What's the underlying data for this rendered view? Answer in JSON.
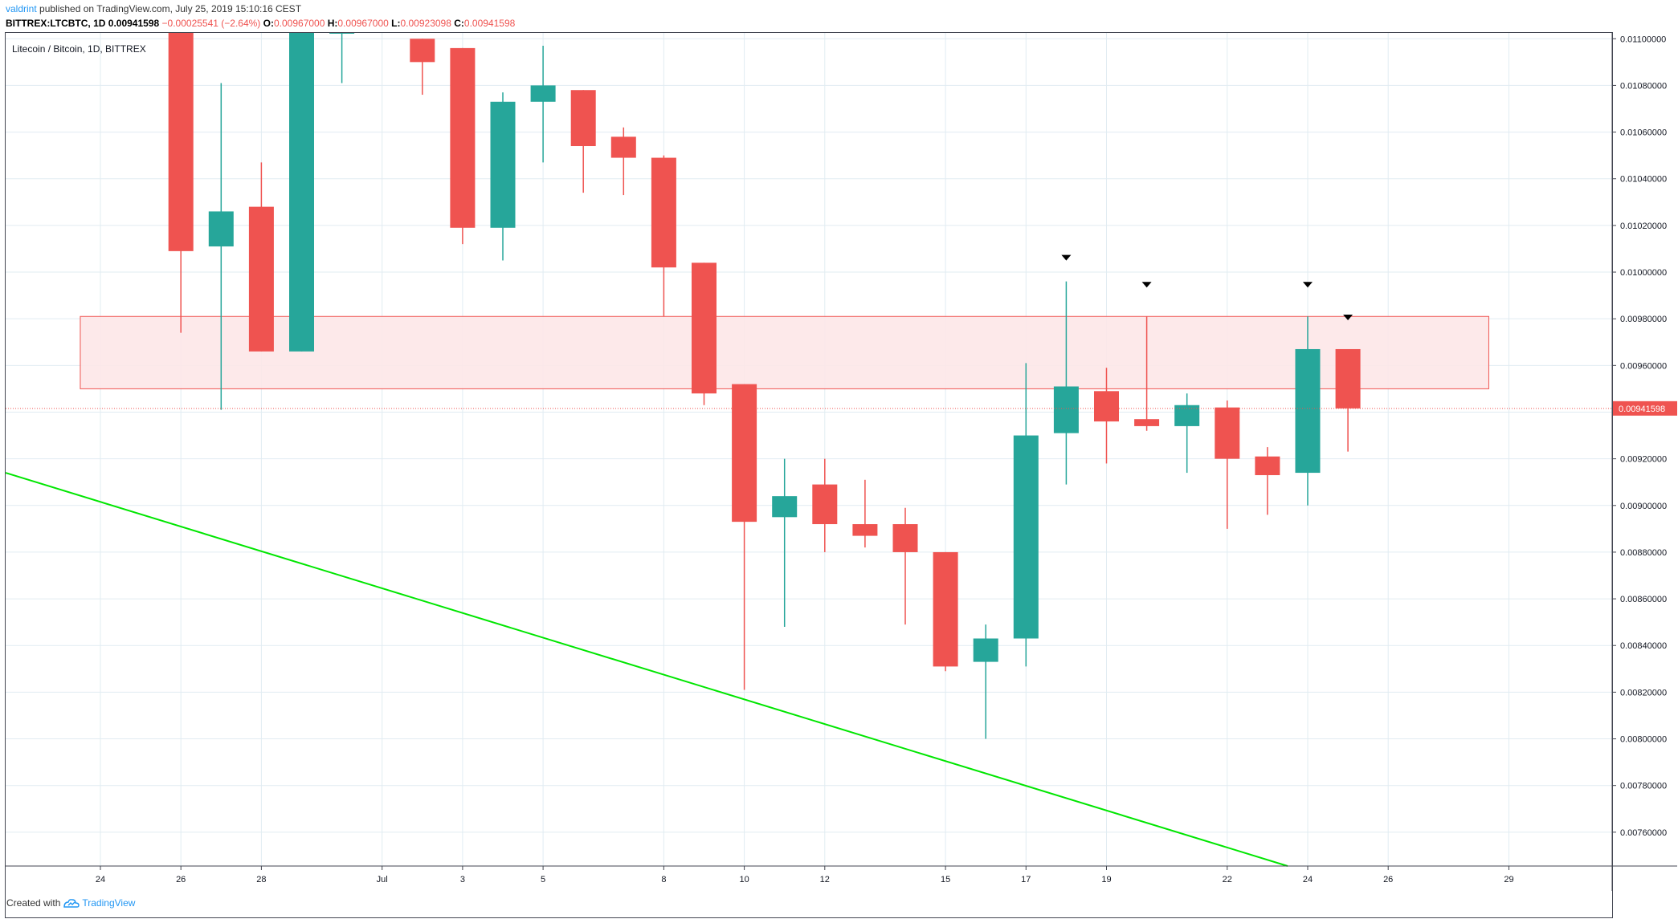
{
  "header": {
    "author": "valdrint",
    "published_text": "published on TradingView.com, July 25, 2019 15:10:16 CEST",
    "symbol_line": "BITTREX:LTCBTC, 1D",
    "last_value": "0.00941598",
    "change": "−0.00025541 (−2.64%)",
    "open_label": "O:",
    "open_value": "0.00967000",
    "high_label": "H:",
    "high_value": "0.00967000",
    "low_label": "L:",
    "low_value": "0.00923098",
    "close_label": "C:",
    "close_value": "0.00941598"
  },
  "chart_data": {
    "type": "candlestick",
    "title": "Litecoin / Bitcoin, 1D, BITTREX",
    "y_ticks": [
      0.0076,
      0.0078,
      0.008,
      0.0082,
      0.0084,
      0.0086,
      0.0088,
      0.009,
      0.0092,
      0.0094,
      0.0096,
      0.0098,
      0.01,
      0.0102,
      0.0104,
      0.0106,
      0.0108,
      0.011
    ],
    "y_tick_labels": [
      "0.00760000",
      "0.00780000",
      "0.00800000",
      "0.00820000",
      "0.00840000",
      "0.00860000",
      "0.00880000",
      "0.00900000",
      "0.00920000",
      "0.00940000",
      "0.00960000",
      "0.00980000",
      "0.01000000",
      "0.01020000",
      "0.01040000",
      "0.01060000",
      "0.01080000",
      "0.01100000"
    ],
    "ylim": [
      0.007455,
      0.011025
    ],
    "x_ticks": [
      {
        "day": 0,
        "label": "24"
      },
      {
        "day": 2,
        "label": "26"
      },
      {
        "day": 4,
        "label": "28"
      },
      {
        "day": 7,
        "label": "Jul"
      },
      {
        "day": 9,
        "label": "3"
      },
      {
        "day": 11,
        "label": "5"
      },
      {
        "day": 14,
        "label": "8"
      },
      {
        "day": 16,
        "label": "10"
      },
      {
        "day": 18,
        "label": "12"
      },
      {
        "day": 21,
        "label": "15"
      },
      {
        "day": 23,
        "label": "17"
      },
      {
        "day": 25,
        "label": "19"
      },
      {
        "day": 28,
        "label": "22"
      },
      {
        "day": 30,
        "label": "24"
      },
      {
        "day": 32,
        "label": "26"
      },
      {
        "day": 35,
        "label": "29"
      }
    ],
    "candles": [
      {
        "day": 2,
        "open": 0.0112,
        "high": 0.0112,
        "low": 0.00974,
        "close": 0.01009
      },
      {
        "day": 3,
        "open": 0.01011,
        "high": 0.01081,
        "low": 0.00941,
        "close": 0.01026
      },
      {
        "day": 4,
        "open": 0.01028,
        "high": 0.01047,
        "low": 0.00966,
        "close": 0.00966
      },
      {
        "day": 5,
        "open": 0.00966,
        "high": 0.0112,
        "low": 0.00966,
        "close": 0.0112
      },
      {
        "day": 6,
        "open": 0.0112,
        "high": 0.0112,
        "low": 0.01081,
        "close": 0.0112
      },
      {
        "day": 8,
        "open": 0.011,
        "high": 0.011,
        "low": 0.01076,
        "close": 0.0109
      },
      {
        "day": 9,
        "open": 0.01096,
        "high": 0.01096,
        "low": 0.01012,
        "close": 0.01019
      },
      {
        "day": 10,
        "open": 0.01019,
        "high": 0.01077,
        "low": 0.01005,
        "close": 0.01073
      },
      {
        "day": 11,
        "open": 0.01073,
        "high": 0.01097,
        "low": 0.01047,
        "close": 0.0108
      },
      {
        "day": 12,
        "open": 0.01078,
        "high": 0.01078,
        "low": 0.01034,
        "close": 0.01054
      },
      {
        "day": 13,
        "open": 0.01058,
        "high": 0.01062,
        "low": 0.01033,
        "close": 0.01049
      },
      {
        "day": 14,
        "open": 0.01049,
        "high": 0.0105,
        "low": 0.00981,
        "close": 0.01002
      },
      {
        "day": 15,
        "open": 0.01004,
        "high": 0.01004,
        "low": 0.00943,
        "close": 0.00948
      },
      {
        "day": 16,
        "open": 0.00952,
        "high": 0.00952,
        "low": 0.00821,
        "close": 0.00893
      },
      {
        "day": 17,
        "open": 0.00895,
        "high": 0.0092,
        "low": 0.00848,
        "close": 0.00904
      },
      {
        "day": 18,
        "open": 0.00909,
        "high": 0.0092,
        "low": 0.0088,
        "close": 0.00892
      },
      {
        "day": 19,
        "open": 0.00892,
        "high": 0.00911,
        "low": 0.00882,
        "close": 0.00887
      },
      {
        "day": 20,
        "open": 0.00892,
        "high": 0.00899,
        "low": 0.00849,
        "close": 0.0088
      },
      {
        "day": 21,
        "open": 0.0088,
        "high": 0.0088,
        "low": 0.00829,
        "close": 0.00831
      },
      {
        "day": 22,
        "open": 0.00833,
        "high": 0.00849,
        "low": 0.008,
        "close": 0.00843
      },
      {
        "day": 23,
        "open": 0.00843,
        "high": 0.00961,
        "low": 0.00831,
        "close": 0.0093
      },
      {
        "day": 24,
        "open": 0.00931,
        "high": 0.00996,
        "low": 0.00909,
        "close": 0.00951
      },
      {
        "day": 25,
        "open": 0.00949,
        "high": 0.00959,
        "low": 0.00918,
        "close": 0.00936
      },
      {
        "day": 26,
        "open": 0.00937,
        "high": 0.00981,
        "low": 0.00932,
        "close": 0.00934
      },
      {
        "day": 27,
        "open": 0.00934,
        "high": 0.00948,
        "low": 0.00914,
        "close": 0.00943
      },
      {
        "day": 28,
        "open": 0.00942,
        "high": 0.00945,
        "low": 0.0089,
        "close": 0.0092
      },
      {
        "day": 29,
        "open": 0.00921,
        "high": 0.00925,
        "low": 0.00896,
        "close": 0.00913
      },
      {
        "day": 30,
        "open": 0.00914,
        "high": 0.00981,
        "low": 0.009,
        "close": 0.00967
      },
      {
        "day": 31,
        "open": 0.00967,
        "high": 0.00967,
        "low": 0.00923098,
        "close": 0.00941598
      }
    ],
    "resistance_zone": {
      "from_day": -0.5,
      "to_day": 34.5,
      "low": 0.0095,
      "high": 0.00981
    },
    "trendline": {
      "from_day": -2.5,
      "from_value": 0.00914,
      "to_day": 29.5,
      "to_value": 0.007455
    },
    "markers": [
      {
        "day": 24
      },
      {
        "day": 26
      },
      {
        "day": 30
      },
      {
        "day": 31
      }
    ],
    "last_price": 0.00941598,
    "last_price_label": "0.00941598",
    "colors": {
      "up": "#26a69a",
      "down": "#ef5350",
      "trendline": "#00e600",
      "zone_fill": "#fde7e8",
      "zone_stroke": "#ef5350",
      "grid": "#e1ecf2"
    }
  },
  "footer": {
    "created_with": "Created with",
    "brand": "TradingView"
  }
}
